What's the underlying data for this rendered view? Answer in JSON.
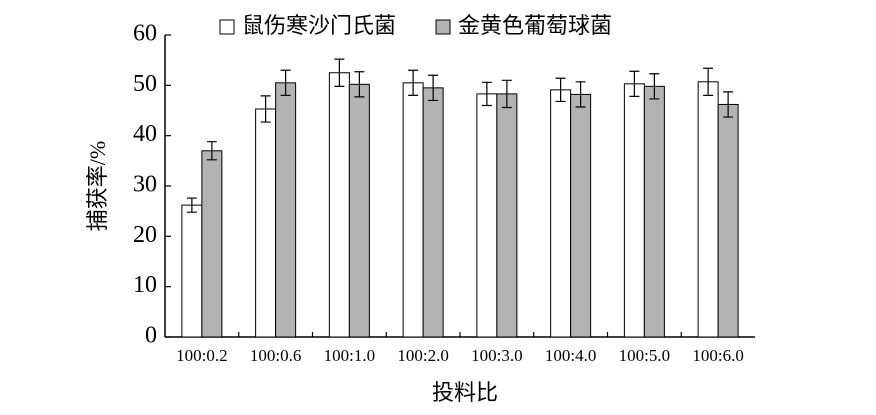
{
  "chart_data": {
    "type": "bar",
    "x_label": "投料比",
    "y_label": "捕获率/%",
    "categories": [
      "100:0.2",
      "100:0.6",
      "100:1.0",
      "100:2.0",
      "100:3.0",
      "100:4.0",
      "100:5.0",
      "100:6.0"
    ],
    "series": [
      {
        "name": "鼠伤寒沙门氏菌",
        "color": "#ffffff",
        "values": [
          26.2,
          45.3,
          52.5,
          50.5,
          48.3,
          49.1,
          50.3,
          50.7
        ],
        "errors": [
          1.4,
          2.6,
          2.7,
          2.5,
          2.3,
          2.3,
          2.5,
          2.7
        ]
      },
      {
        "name": "金黄色葡萄球菌",
        "color": "#b3b3b3",
        "values": [
          37.0,
          50.5,
          50.2,
          49.5,
          48.3,
          48.2,
          49.8,
          46.2
        ],
        "errors": [
          1.8,
          2.5,
          2.5,
          2.5,
          2.7,
          2.5,
          2.5,
          2.5
        ]
      }
    ],
    "ylim": [
      0,
      60
    ],
    "yticks": [
      0,
      10,
      20,
      30,
      40,
      50,
      60
    ],
    "grid": false,
    "legend": "top"
  }
}
